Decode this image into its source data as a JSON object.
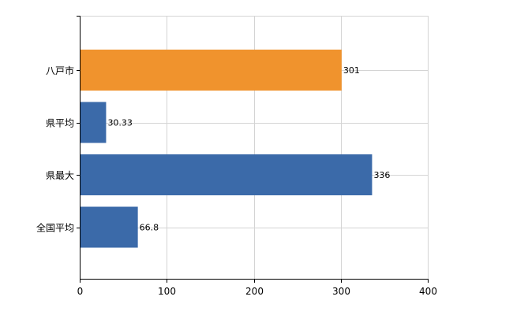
{
  "chart_data": {
    "type": "bar",
    "orientation": "horizontal",
    "categories": [
      "八戸市",
      "県平均",
      "県最大",
      "全国平均"
    ],
    "values": [
      301,
      30.33,
      336,
      66.8
    ],
    "value_labels": [
      "301",
      "30.33",
      "336",
      "66.8"
    ],
    "bar_colors": [
      "#f0932d",
      "#3b6aa9",
      "#3b6aa9",
      "#3b6aa9"
    ],
    "xlim": [
      0,
      400
    ],
    "xticks": [
      0,
      100,
      200,
      300,
      400
    ],
    "xtick_labels": [
      "0",
      "100",
      "200",
      "300",
      "400"
    ],
    "title": "",
    "xlabel": "",
    "ylabel": "",
    "grid": true,
    "legend": false
  }
}
